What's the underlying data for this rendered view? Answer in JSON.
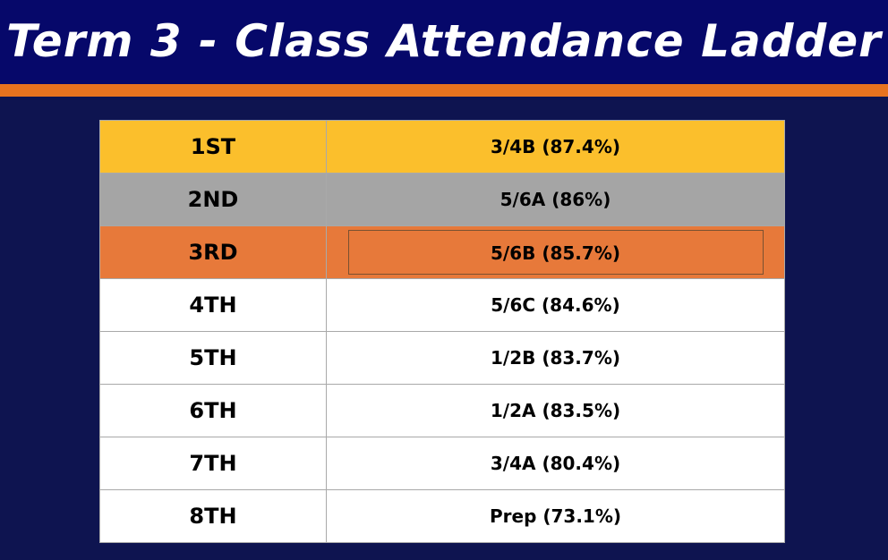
{
  "title": "Term 3 - Class Attendance Ladder",
  "colors": {
    "header_bg": "#06086a",
    "accent_bar": "#e8731e",
    "page_bg": "#0e1450",
    "first_place": "#fbbf2c",
    "second_place": "#a5a5a5",
    "third_place": "#e7793a",
    "other_place": "#ffffff"
  },
  "ladder": [
    {
      "rank": "1ST",
      "result": "3/4B (87.4%)"
    },
    {
      "rank": "2ND",
      "result": "5/6A (86%)"
    },
    {
      "rank": "3RD",
      "result": "5/6B (85.7%)"
    },
    {
      "rank": "4TH",
      "result": "5/6C (84.6%)"
    },
    {
      "rank": "5TH",
      "result": "1/2B (83.7%)"
    },
    {
      "rank": "6TH",
      "result": "1/2A (83.5%)"
    },
    {
      "rank": "7TH",
      "result": "3/4A (80.4%)"
    },
    {
      "rank": "8TH",
      "result": "Prep (73.1%)"
    }
  ]
}
